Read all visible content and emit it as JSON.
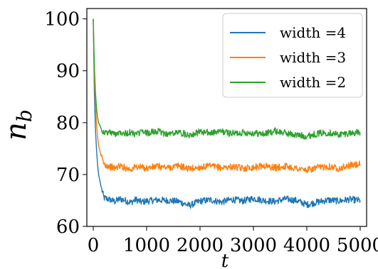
{
  "chart_data": {
    "type": "line",
    "title": "",
    "xlabel": "t",
    "ylabel": "n_b",
    "xlim": [
      -120,
      5120
    ],
    "ylim": [
      60,
      102
    ],
    "xticks": [
      "0",
      "1000",
      "2000",
      "3000",
      "4000",
      "5000"
    ],
    "yticks": [
      "60",
      "70",
      "80",
      "90",
      "100"
    ],
    "grid": false,
    "legend_position": "top-right",
    "colors": {
      "width4": "#1f77b4",
      "width3": "#ff7f0e",
      "width2": "#2ca02c"
    },
    "series": [
      {
        "name": "width =4",
        "color": "#1f77b4",
        "x": [
          0,
          20,
          40,
          60,
          80,
          100,
          150,
          200,
          300,
          400,
          500,
          600,
          700,
          800,
          900,
          1000,
          1200,
          1400,
          1600,
          1800,
          2000,
          2200,
          2400,
          2600,
          2800,
          3000,
          3200,
          3400,
          3600,
          3800,
          4000,
          4200,
          4400,
          4600,
          4800,
          5000
        ],
        "values": [
          100,
          86,
          79,
          75,
          72,
          70,
          67.5,
          65.5,
          65.2,
          64.8,
          65.3,
          65.0,
          64.6,
          65.2,
          64.7,
          64.9,
          65.1,
          65.0,
          64.8,
          64.0,
          64.9,
          65.1,
          64.7,
          65.2,
          64.9,
          65.4,
          65.0,
          64.8,
          65.3,
          65.0,
          64.2,
          64.7,
          65.1,
          64.9,
          65.2,
          65.0
        ]
      },
      {
        "name": "width =3",
        "color": "#ff7f0e",
        "x": [
          0,
          20,
          40,
          60,
          80,
          100,
          150,
          200,
          300,
          400,
          500,
          600,
          700,
          800,
          900,
          1000,
          1200,
          1400,
          1600,
          1800,
          2000,
          2200,
          2400,
          2600,
          2800,
          3000,
          3200,
          3400,
          3600,
          3800,
          4000,
          4200,
          4400,
          4600,
          4800,
          5000
        ],
        "values": [
          100,
          89,
          84,
          80,
          77.5,
          75.5,
          73.5,
          72.0,
          71.6,
          71.2,
          71.7,
          71.3,
          71.0,
          71.5,
          71.4,
          71.2,
          71.6,
          71.3,
          71.7,
          71.1,
          71.4,
          71.6,
          71.3,
          71.5,
          71.2,
          71.4,
          71.7,
          71.3,
          71.6,
          71.2,
          70.8,
          71.3,
          71.6,
          71.2,
          71.7,
          72.0
        ]
      },
      {
        "name": "width =2",
        "color": "#2ca02c",
        "x": [
          0,
          20,
          40,
          60,
          80,
          100,
          150,
          200,
          300,
          400,
          500,
          600,
          700,
          800,
          900,
          1000,
          1200,
          1400,
          1600,
          1800,
          2000,
          2200,
          2400,
          2600,
          2800,
          3000,
          3200,
          3400,
          3600,
          3800,
          4000,
          4200,
          4400,
          4600,
          4800,
          5000
        ],
        "values": [
          100,
          91,
          86,
          83,
          81,
          80,
          78.8,
          78.0,
          78.2,
          77.8,
          78.3,
          77.9,
          78.1,
          77.7,
          78.2,
          78.0,
          78.3,
          77.8,
          78.1,
          77.7,
          78.2,
          78.0,
          78.3,
          77.9,
          78.1,
          78.0,
          77.8,
          78.4,
          78.0,
          77.6,
          77.4,
          77.9,
          78.1,
          77.7,
          78.0,
          78.1
        ]
      }
    ]
  }
}
